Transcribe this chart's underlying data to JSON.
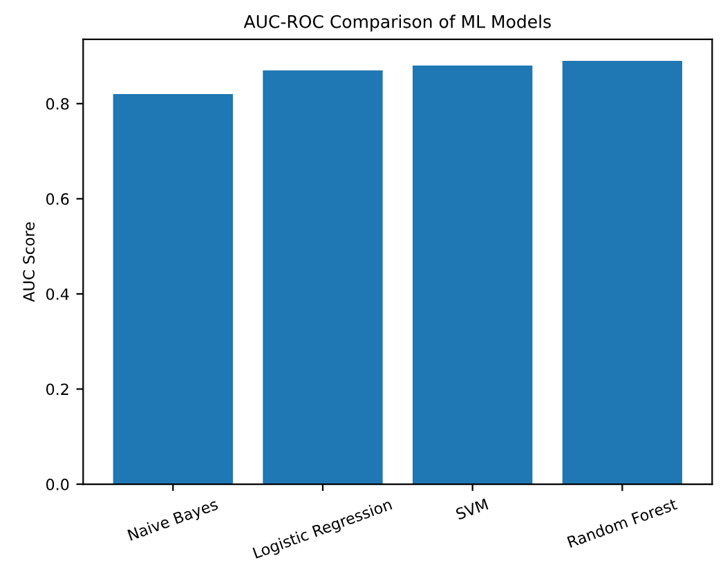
{
  "chart_data": {
    "type": "bar",
    "title": "AUC-ROC Comparison of ML Models",
    "ylabel": "AUC Score",
    "categories": [
      "Naive Bayes",
      "Logistic Regression",
      "SVM",
      "Random Forest"
    ],
    "values": [
      0.82,
      0.87,
      0.88,
      0.89
    ],
    "color": "#1f77b4",
    "ylim": [
      0,
      0.935
    ],
    "yticks": [
      {
        "value": 0,
        "label": "0.0"
      },
      {
        "value": 0.2,
        "label": "0.2"
      },
      {
        "value": 0.4,
        "label": "0.4"
      },
      {
        "value": 0.6,
        "label": "0.6"
      },
      {
        "value": 0.8,
        "label": "0.8"
      }
    ],
    "grid": false
  }
}
